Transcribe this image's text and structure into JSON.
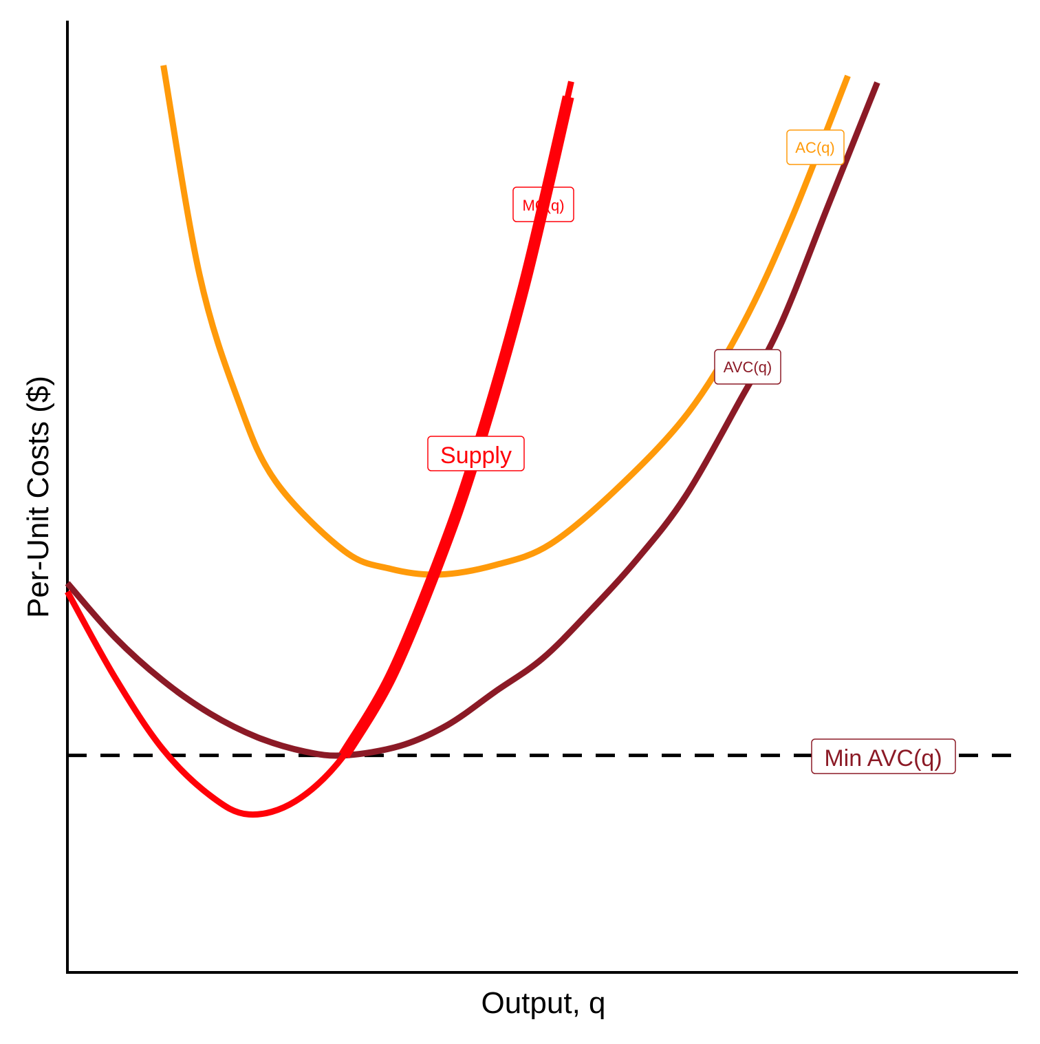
{
  "chart_data": {
    "type": "line",
    "title": "",
    "xlabel": "Output, q",
    "ylabel": "Per-Unit Costs ($)",
    "xlim": [
      0,
      10
    ],
    "ylim": [
      0,
      10
    ],
    "grid": false,
    "colors": {
      "mc": "#ff0008",
      "ac": "#ff9a0a",
      "avc": "#8b1a26",
      "axis": "#000000"
    },
    "series": [
      {
        "name": "AC(q)",
        "key": "ac",
        "points": [
          [
            1.01,
            9.53
          ],
          [
            1.39,
            7.33
          ],
          [
            1.8,
            6.0
          ],
          [
            2.19,
            5.16
          ],
          [
            2.91,
            4.43
          ],
          [
            3.4,
            4.24
          ],
          [
            3.91,
            4.18
          ],
          [
            4.5,
            4.28
          ],
          [
            5.08,
            4.5
          ],
          [
            5.8,
            5.1
          ],
          [
            6.53,
            5.88
          ],
          [
            7.1,
            6.8
          ],
          [
            7.61,
            7.9
          ],
          [
            8.21,
            9.42
          ]
        ]
      },
      {
        "name": "AVC(q)",
        "key": "avc",
        "points": [
          [
            0,
            4.09
          ],
          [
            0.5,
            3.52
          ],
          [
            1,
            3.07
          ],
          [
            1.5,
            2.72
          ],
          [
            2,
            2.47
          ],
          [
            2.5,
            2.32
          ],
          [
            2.91,
            2.28
          ],
          [
            3.5,
            2.38
          ],
          [
            4,
            2.6
          ],
          [
            4.5,
            2.95
          ],
          [
            5,
            3.3
          ],
          [
            5.5,
            3.8
          ],
          [
            6,
            4.35
          ],
          [
            6.5,
            5.0
          ],
          [
            7.07,
            6.0
          ],
          [
            7.5,
            6.8
          ],
          [
            8,
            8.05
          ],
          [
            8.52,
            9.35
          ]
        ]
      },
      {
        "name": "MC(q)",
        "key": "mc",
        "points": [
          [
            0,
            4.0
          ],
          [
            0.5,
            3.1
          ],
          [
            1.0,
            2.35
          ],
          [
            1.5,
            1.86
          ],
          [
            1.91,
            1.66
          ],
          [
            2.4,
            1.8
          ],
          [
            2.91,
            2.28
          ],
          [
            3.4,
            3.1
          ],
          [
            3.9,
            4.3
          ],
          [
            4.3,
            5.45
          ],
          [
            4.8,
            7.2
          ],
          [
            5.3,
            9.36
          ]
        ]
      },
      {
        "name": "Supply",
        "key": "supply",
        "points": [
          [
            2.91,
            2.28
          ],
          [
            3.4,
            3.1
          ],
          [
            3.9,
            4.3
          ],
          [
            4.3,
            5.45
          ],
          [
            4.8,
            7.2
          ],
          [
            5.27,
            9.2
          ]
        ]
      }
    ],
    "hline": {
      "name": "Min AVC(q)",
      "y": 2.28,
      "style": "dashed"
    },
    "labels": {
      "ac": "AC(q)",
      "avc": "AVC(q)",
      "mc": "MC(q)",
      "supply": "Supply",
      "min_avc": "Min AVC(q)"
    }
  }
}
